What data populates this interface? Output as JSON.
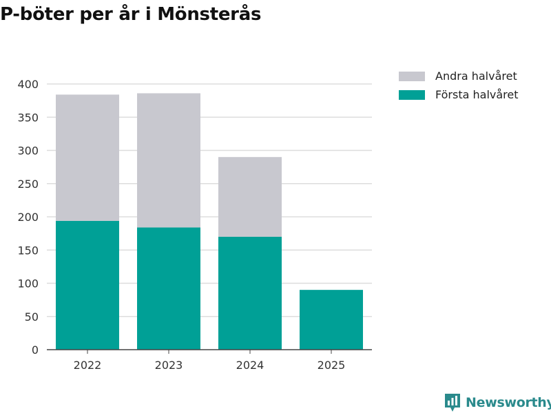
{
  "title": "P-böter per år i Mönsterås",
  "chart_data": {
    "type": "bar",
    "stacked": true,
    "categories": [
      "2022",
      "2023",
      "2024",
      "2025"
    ],
    "series": [
      {
        "name": "Första halvåret",
        "values": [
          194,
          184,
          170,
          90
        ],
        "color": "#00a096"
      },
      {
        "name": "Andra halvåret",
        "values": [
          190,
          202,
          120,
          0
        ],
        "color": "#c8c8cf"
      }
    ],
    "yticks": [
      0,
      50,
      100,
      150,
      200,
      250,
      300,
      350,
      400
    ],
    "ylim": [
      0,
      400
    ],
    "grid": true,
    "legend_position": "top-right"
  },
  "legend": [
    {
      "label": "Andra halvåret",
      "color": "#c8c8cf"
    },
    {
      "label": "Första halvåret",
      "color": "#00a096"
    }
  ],
  "brand": {
    "name": "Newsworthy",
    "color": "#2a8a8c"
  }
}
